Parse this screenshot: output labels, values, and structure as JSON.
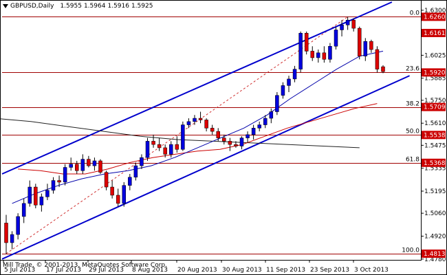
{
  "header": {
    "symbol": "GBPUSD,Daily",
    "open": "1.5955",
    "high": "1.5964",
    "low": "1.5916",
    "close": "1.5925"
  },
  "copyright": "Mill Trade, © 2001-2013, MetaQuotes Software Corp.",
  "chart_data": {
    "type": "candlestick",
    "y_axis": {
      "range": [
        1.4775,
        1.635
      ],
      "ticks": [
        "1.6300",
        "1.6025",
        "1.5885",
        "1.5750",
        "1.5610",
        "1.5475",
        "1.5335",
        "1.5195",
        "1.5060",
        "1.4920",
        "1.4780"
      ]
    },
    "x_axis": {
      "labels": [
        "5 Jul 2013",
        "17 Jul 2013",
        "29 Jul 2013",
        "8 Aug 2013",
        "20 Aug 2013",
        "30 Aug 2013",
        "11 Sep 2013",
        "23 Sep 2013",
        "3 Oct 2013"
      ]
    },
    "price_labels": [
      {
        "text": "1.6260",
        "value": 1.626
      },
      {
        "text": "1.6161",
        "value": 1.6161
      },
      {
        "text": "1.5920",
        "value": 1.592
      },
      {
        "text": "1.5709",
        "value": 1.5709
      },
      {
        "text": "1.5538",
        "value": 1.5538
      },
      {
        "text": "1.5368",
        "value": 1.5368
      },
      {
        "text": "1.4813",
        "value": 1.4813
      }
    ],
    "fib_levels": [
      {
        "label": "0.0",
        "value": 1.626
      },
      {
        "label": "23.6",
        "value": 1.592
      },
      {
        "label": "38.2",
        "value": 1.5709
      },
      {
        "label": "50.0",
        "value": 1.5538
      },
      {
        "label": "61.8",
        "value": 1.5368
      },
      {
        "label": "100.0",
        "value": 1.4813
      }
    ],
    "candles": [
      [
        1.5,
        1.505,
        1.4813,
        1.488
      ],
      [
        1.488,
        1.495,
        1.484,
        1.493
      ],
      [
        1.493,
        1.506,
        1.49,
        1.504
      ],
      [
        1.504,
        1.515,
        1.5,
        1.512
      ],
      [
        1.512,
        1.526,
        1.51,
        1.522
      ],
      [
        1.522,
        1.524,
        1.509,
        1.511
      ],
      [
        1.511,
        1.518,
        1.507,
        1.516
      ],
      [
        1.516,
        1.524,
        1.514,
        1.52
      ],
      [
        1.52,
        1.528,
        1.518,
        1.526
      ],
      [
        1.526,
        1.529,
        1.522,
        1.525
      ],
      [
        1.525,
        1.536,
        1.523,
        1.534
      ],
      [
        1.534,
        1.54,
        1.532,
        1.536
      ],
      [
        1.536,
        1.538,
        1.53,
        1.532
      ],
      [
        1.532,
        1.542,
        1.53,
        1.539
      ],
      [
        1.539,
        1.541,
        1.534,
        1.535
      ],
      [
        1.535,
        1.54,
        1.532,
        1.538
      ],
      [
        1.538,
        1.539,
        1.53,
        1.531
      ],
      [
        1.531,
        1.532,
        1.52,
        1.522
      ],
      [
        1.522,
        1.526,
        1.515,
        1.517
      ],
      [
        1.517,
        1.521,
        1.51,
        1.512
      ],
      [
        1.512,
        1.525,
        1.51,
        1.523
      ],
      [
        1.523,
        1.53,
        1.52,
        1.528
      ],
      [
        1.528,
        1.537,
        1.526,
        1.535
      ],
      [
        1.535,
        1.542,
        1.533,
        1.54
      ],
      [
        1.54,
        1.552,
        1.538,
        1.55
      ],
      [
        1.55,
        1.554,
        1.546,
        1.548
      ],
      [
        1.548,
        1.552,
        1.544,
        1.546
      ],
      [
        1.546,
        1.548,
        1.54,
        1.542
      ],
      [
        1.542,
        1.55,
        1.54,
        1.548
      ],
      [
        1.548,
        1.553,
        1.543,
        1.545
      ],
      [
        1.545,
        1.562,
        1.544,
        1.56
      ],
      [
        1.56,
        1.564,
        1.558,
        1.562
      ],
      [
        1.562,
        1.566,
        1.56,
        1.564
      ],
      [
        1.564,
        1.568,
        1.561,
        1.563
      ],
      [
        1.563,
        1.564,
        1.556,
        1.558
      ],
      [
        1.558,
        1.56,
        1.554,
        1.556
      ],
      [
        1.556,
        1.558,
        1.55,
        1.552
      ],
      [
        1.552,
        1.554,
        1.548,
        1.55
      ],
      [
        1.55,
        1.552,
        1.544,
        1.548
      ],
      [
        1.548,
        1.55,
        1.546,
        1.547
      ],
      [
        1.547,
        1.553,
        1.545,
        1.552
      ],
      [
        1.552,
        1.556,
        1.549,
        1.554
      ],
      [
        1.554,
        1.56,
        1.551,
        1.558
      ],
      [
        1.558,
        1.562,
        1.556,
        1.56
      ],
      [
        1.56,
        1.566,
        1.558,
        1.564
      ],
      [
        1.564,
        1.57,
        1.561,
        1.568
      ],
      [
        1.568,
        1.58,
        1.566,
        1.578
      ],
      [
        1.578,
        1.586,
        1.576,
        1.584
      ],
      [
        1.584,
        1.59,
        1.58,
        1.588
      ],
      [
        1.588,
        1.596,
        1.586,
        1.594
      ],
      [
        1.594,
        1.617,
        1.592,
        1.616
      ],
      [
        1.616,
        1.617,
        1.603,
        1.605
      ],
      [
        1.605,
        1.608,
        1.599,
        1.601
      ],
      [
        1.601,
        1.606,
        1.598,
        1.604
      ],
      [
        1.604,
        1.608,
        1.598,
        1.6
      ],
      [
        1.6,
        1.61,
        1.598,
        1.608
      ],
      [
        1.608,
        1.62,
        1.606,
        1.618
      ],
      [
        1.618,
        1.624,
        1.614,
        1.621
      ],
      [
        1.621,
        1.626,
        1.618,
        1.624
      ],
      [
        1.624,
        1.625,
        1.617,
        1.619
      ],
      [
        1.619,
        1.62,
        1.6,
        1.602
      ],
      [
        1.602,
        1.613,
        1.599,
        1.611
      ],
      [
        1.611,
        1.612,
        1.604,
        1.606
      ],
      [
        1.606,
        1.608,
        1.592,
        1.594
      ],
      [
        1.5955,
        1.5964,
        1.5916,
        1.5925
      ]
    ],
    "ma_fast": [
      1.512,
      1.518,
      1.523,
      1.527,
      1.53,
      1.532,
      1.535,
      1.54,
      1.546,
      1.552,
      1.558,
      1.566,
      1.576,
      1.585,
      1.594,
      1.602,
      1.605
    ],
    "ma_slow": [
      1.533,
      1.532,
      1.53,
      1.53,
      1.533,
      1.537,
      1.54,
      1.542,
      1.544,
      1.545,
      1.548,
      1.553,
      1.558,
      1.562,
      1.566,
      1.57,
      1.573
    ],
    "ma_long": [
      1.564,
      1.562,
      1.559,
      1.556,
      1.553,
      1.551,
      1.55,
      1.549,
      1.548,
      1.547,
      1.546
    ]
  }
}
